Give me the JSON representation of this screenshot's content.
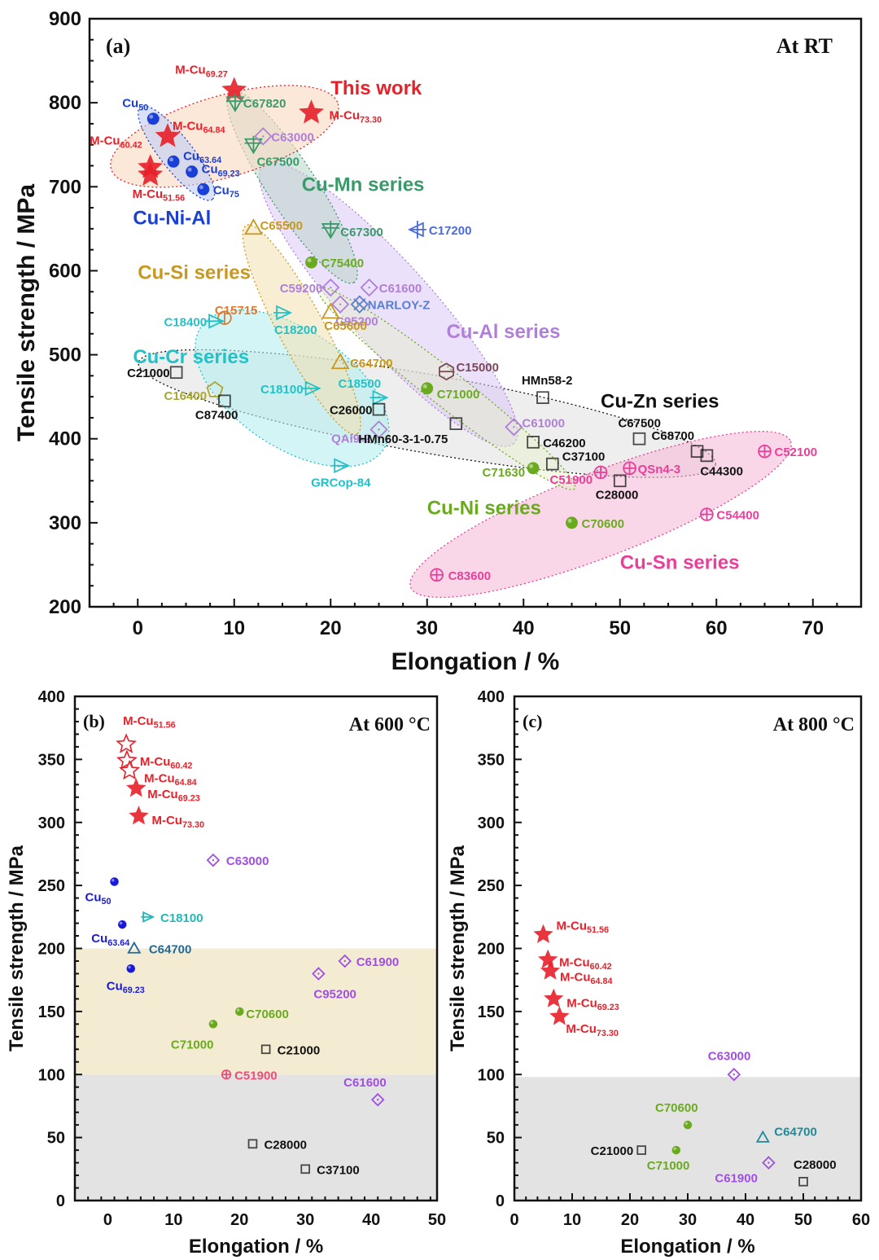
{
  "chart_data": [
    {
      "panel": "(a)",
      "type": "scatter",
      "title": "At RT",
      "xlabel": "Elongation / %",
      "ylabel": "Tensile strength / MPa",
      "xlim": [
        -5,
        75
      ],
      "ylim": [
        200,
        900
      ],
      "xticks": [
        0,
        10,
        20,
        30,
        40,
        50,
        60,
        70
      ],
      "yticks": [
        200,
        300,
        400,
        500,
        600,
        700,
        800,
        900
      ],
      "groups": [
        {
          "name": "This work",
          "color": "#e8202a"
        },
        {
          "name": "Cu-Ni-Al",
          "color": "#1a3fd6"
        },
        {
          "name": "Cu-Mn series",
          "color": "#3a9a6a"
        },
        {
          "name": "Cu-Si series",
          "color": "#c9981e"
        },
        {
          "name": "Cu-Al series",
          "color": "#b07fd8"
        },
        {
          "name": "Cu-Cr series",
          "color": "#22c2c8"
        },
        {
          "name": "Cu-Zn series",
          "color": "#111111"
        },
        {
          "name": "Cu-Ni series",
          "color": "#6aaa1e"
        },
        {
          "name": "Cu-Sn series",
          "color": "#e8409a"
        }
      ],
      "points": [
        {
          "label": "M-Cu",
          "sub": "69.27",
          "x": 10.0,
          "y": 815,
          "group": "This work",
          "marker": "star"
        },
        {
          "label": "M-Cu",
          "sub": "73.30",
          "x": 18.0,
          "y": 788,
          "group": "This work",
          "marker": "star"
        },
        {
          "label": "M-Cu",
          "sub": "64.84",
          "x": 3.1,
          "y": 760,
          "group": "This work",
          "marker": "star"
        },
        {
          "label": "M-Cu",
          "sub": "60.42",
          "x": 1.3,
          "y": 723,
          "group": "This work",
          "marker": "star"
        },
        {
          "label": "M-Cu",
          "sub": "51.56",
          "x": 1.3,
          "y": 714,
          "group": "This work",
          "marker": "star"
        },
        {
          "label": "Cu",
          "sub": "50",
          "x": 1.6,
          "y": 781,
          "group": "Cu-Ni-Al",
          "marker": "ball"
        },
        {
          "label": "Cu",
          "sub": "63.64",
          "x": 3.7,
          "y": 730,
          "group": "Cu-Ni-Al",
          "marker": "ball"
        },
        {
          "label": "Cu",
          "sub": "69.23",
          "x": 5.6,
          "y": 718,
          "group": "Cu-Ni-Al",
          "marker": "ball"
        },
        {
          "label": "Cu",
          "sub": "75",
          "x": 6.8,
          "y": 697,
          "group": "Cu-Ni-Al",
          "marker": "ball"
        },
        {
          "label": "C67820",
          "x": 10.1,
          "y": 800,
          "group": "Cu-Mn series",
          "marker": "tridown"
        },
        {
          "label": "C67500",
          "x": 12.0,
          "y": 750,
          "group": "Cu-Mn series",
          "marker": "tridown"
        },
        {
          "label": "C67300",
          "x": 20.0,
          "y": 649,
          "group": "Cu-Mn series",
          "marker": "tridown"
        },
        {
          "label": "C63000",
          "x": 13.0,
          "y": 760,
          "group": "Cu-Al series",
          "marker": "diamond"
        },
        {
          "label": "C59200",
          "x": 20.0,
          "y": 580,
          "group": "Cu-Al series",
          "marker": "diamond"
        },
        {
          "label": "C61600",
          "x": 24.0,
          "y": 580,
          "group": "Cu-Al series",
          "marker": "diamond"
        },
        {
          "label": "C95200",
          "x": 21.0,
          "y": 560,
          "group": "Cu-Al series",
          "marker": "diamond"
        },
        {
          "label": "QAl9-2",
          "x": 25.0,
          "y": 411,
          "group": "Cu-Al series",
          "marker": "diamond"
        },
        {
          "label": "C61000",
          "x": 39.0,
          "y": 414,
          "group": "Cu-Al series",
          "marker": "diamond"
        },
        {
          "label": "C17200",
          "x": 29.0,
          "y": 649,
          "group": "Other",
          "marker": "triLeftCross",
          "color": "#4a6ae0"
        },
        {
          "label": "NARLOY-Z",
          "x": 23.0,
          "y": 560,
          "group": "Other",
          "marker": "cross",
          "color": "#5a7fd0"
        },
        {
          "label": "C15715",
          "x": 9.0,
          "y": 544,
          "group": "Other",
          "marker": "circleBar",
          "color": "#e07a30"
        },
        {
          "label": "C15000",
          "x": 32.0,
          "y": 480,
          "group": "Other",
          "marker": "hexagon",
          "color": "#7a4a5a"
        },
        {
          "label": "C16400",
          "x": 8.0,
          "y": 458,
          "group": "Other",
          "marker": "pentagon",
          "color": "#a8a830"
        },
        {
          "label": "C65500",
          "x": 12.0,
          "y": 651,
          "group": "Cu-Si series",
          "marker": "triangle"
        },
        {
          "label": "C65600",
          "x": 20.0,
          "y": 551,
          "group": "Cu-Si series",
          "marker": "triangle"
        },
        {
          "label": "C64700",
          "x": 21.0,
          "y": 491,
          "group": "Cu-Si series",
          "marker": "triangle"
        },
        {
          "label": "C18400",
          "x": 8.0,
          "y": 540,
          "group": "Cu-Cr series",
          "marker": "triright"
        },
        {
          "label": "C18200",
          "x": 15.0,
          "y": 550,
          "group": "Cu-Cr series",
          "marker": "triright"
        },
        {
          "label": "C18100",
          "x": 18.0,
          "y": 460,
          "group": "Cu-Cr series",
          "marker": "triright"
        },
        {
          "label": "C18500",
          "x": 25.0,
          "y": 449,
          "group": "Cu-Cr series",
          "marker": "triright"
        },
        {
          "label": "GRCop-84",
          "x": 21.0,
          "y": 368,
          "group": "Cu-Cr series",
          "marker": "triright"
        },
        {
          "label": "C21000",
          "x": 4.0,
          "y": 479,
          "group": "Cu-Zn series",
          "marker": "square"
        },
        {
          "label": "C87400",
          "x": 9.0,
          "y": 445,
          "group": "Cu-Zn series",
          "marker": "square"
        },
        {
          "label": "C26000",
          "x": 25.0,
          "y": 435,
          "group": "Cu-Zn series",
          "marker": "square"
        },
        {
          "label": "HMn58-2",
          "x": 42.0,
          "y": 449,
          "group": "Cu-Zn series",
          "marker": "square"
        },
        {
          "label": "HMn60-3-1-0.75",
          "x": 33.0,
          "y": 418,
          "group": "Cu-Zn series",
          "marker": "square"
        },
        {
          "label": "C46200",
          "x": 41.0,
          "y": 396,
          "group": "Cu-Zn series",
          "marker": "square"
        },
        {
          "label": "C67500",
          "x": 52.0,
          "y": 400,
          "group": "Cu-Zn series",
          "marker": "square"
        },
        {
          "label": "C68700",
          "x": 58.0,
          "y": 385,
          "group": "Cu-Zn series",
          "marker": "square"
        },
        {
          "label": "C44300",
          "x": 59.0,
          "y": 380,
          "group": "Cu-Zn series",
          "marker": "square"
        },
        {
          "label": "C37100",
          "x": 43.0,
          "y": 370,
          "group": "Cu-Zn series",
          "marker": "square"
        },
        {
          "label": "C28000",
          "x": 50.0,
          "y": 350,
          "group": "Cu-Zn series",
          "marker": "square"
        },
        {
          "label": "C75400",
          "x": 18.0,
          "y": 610,
          "group": "Cu-Ni series",
          "marker": "ball"
        },
        {
          "label": "C71000",
          "x": 30.0,
          "y": 460,
          "group": "Cu-Ni series",
          "marker": "ball"
        },
        {
          "label": "C71630",
          "x": 41.0,
          "y": 365,
          "group": "Cu-Ni series",
          "marker": "ball"
        },
        {
          "label": "C70600",
          "x": 45.0,
          "y": 300,
          "group": "Cu-Ni series",
          "marker": "ball"
        },
        {
          "label": "C51900",
          "x": 48.0,
          "y": 360,
          "group": "Cu-Sn series",
          "marker": "circlePlus"
        },
        {
          "label": "QSn4-3",
          "x": 51.0,
          "y": 365,
          "group": "Cu-Sn series",
          "marker": "circlePlus"
        },
        {
          "label": "C52100",
          "x": 65.0,
          "y": 385,
          "group": "Cu-Sn series",
          "marker": "circlePlus"
        },
        {
          "label": "C54400",
          "x": 59.0,
          "y": 310,
          "group": "Cu-Sn series",
          "marker": "circlePlus"
        },
        {
          "label": "C83600",
          "x": 31.0,
          "y": 238,
          "group": "Cu-Sn series",
          "marker": "circlePlus"
        }
      ]
    },
    {
      "panel": "(b)",
      "type": "scatter",
      "title": "At 600 °C",
      "xlabel": "Elongation / %",
      "ylabel": "Tensile strength / MPa",
      "xlim": [
        -5,
        50
      ],
      "ylim": [
        0,
        400
      ],
      "xticks": [
        0,
        10,
        20,
        30,
        40,
        50
      ],
      "yticks": [
        0,
        50,
        100,
        150,
        200,
        250,
        300,
        350,
        400
      ],
      "bands": [
        {
          "from": 100,
          "to": 200,
          "color": "#f3ecd3"
        },
        {
          "from": 0,
          "to": 100,
          "color": "#e3e3e3"
        }
      ],
      "points": [
        {
          "label": "M-Cu",
          "sub": "51.56",
          "x": 2.8,
          "y": 362,
          "marker": "starOpen",
          "color": "#e8202a"
        },
        {
          "label": "M-Cu",
          "sub": "60.42",
          "x": 2.9,
          "y": 349,
          "marker": "starOpen",
          "color": "#e8202a"
        },
        {
          "label": "M-Cu",
          "sub": "64.84",
          "x": 3.3,
          "y": 341,
          "marker": "starOpen",
          "color": "#e8202a"
        },
        {
          "label": "M-Cu",
          "sub": "69.23",
          "x": 4.3,
          "y": 327,
          "marker": "star",
          "color": "#e8202a"
        },
        {
          "label": "M-Cu",
          "sub": "73.30",
          "x": 4.7,
          "y": 305,
          "marker": "star",
          "color": "#e8202a"
        },
        {
          "label": "C63000",
          "x": 16.0,
          "y": 270,
          "marker": "diamond",
          "color": "#a050e0"
        },
        {
          "label": "Cu",
          "sub": "50",
          "x": 1.0,
          "y": 253,
          "marker": "ball",
          "color": "#1a1ad6"
        },
        {
          "label": "C18100",
          "x": 6.0,
          "y": 225,
          "marker": "triright",
          "color": "#22b8b8"
        },
        {
          "label": "Cu",
          "sub": "63.64",
          "x": 2.2,
          "y": 219,
          "marker": "ball",
          "color": "#1a1ad6"
        },
        {
          "label": "C64700",
          "x": 4.0,
          "y": 200,
          "marker": "triangle",
          "color": "#1e6a9a"
        },
        {
          "label": "Cu",
          "sub": "69.23",
          "x": 3.5,
          "y": 184,
          "marker": "ball",
          "color": "#1a1ad6"
        },
        {
          "label": "C61900",
          "x": 36.0,
          "y": 190,
          "marker": "diamond",
          "color": "#a050e0"
        },
        {
          "label": "C95200",
          "x": 32.0,
          "y": 180,
          "marker": "diamond",
          "color": "#a050e0"
        },
        {
          "label": "C70600",
          "x": 20.0,
          "y": 150,
          "marker": "ball",
          "color": "#6aaa1e"
        },
        {
          "label": "C71000",
          "x": 16.0,
          "y": 140,
          "marker": "ball",
          "color": "#6aaa1e"
        },
        {
          "label": "C21000",
          "x": 24.0,
          "y": 120,
          "marker": "square",
          "color": "#111111"
        },
        {
          "label": "C51900",
          "x": 18.0,
          "y": 100,
          "marker": "circlePlus",
          "color": "#e8507a"
        },
        {
          "label": "C61600",
          "x": 41.0,
          "y": 80,
          "marker": "diamond",
          "color": "#a050e0"
        },
        {
          "label": "C28000",
          "x": 22.0,
          "y": 45,
          "marker": "square",
          "color": "#111111"
        },
        {
          "label": "C37100",
          "x": 30.0,
          "y": 25,
          "marker": "square",
          "color": "#111111"
        }
      ]
    },
    {
      "panel": "(c)",
      "type": "scatter",
      "title": "At 800 °C",
      "xlabel": "Elongation / %",
      "ylabel": "Tensile strength / MPa",
      "xlim": [
        0,
        60
      ],
      "ylim": [
        0,
        400
      ],
      "xticks": [
        0,
        10,
        20,
        30,
        40,
        50,
        60
      ],
      "yticks": [
        0,
        50,
        100,
        150,
        200,
        250,
        300,
        350,
        400
      ],
      "bands": [
        {
          "from": 0,
          "to": 98,
          "color": "#e3e3e3"
        }
      ],
      "points": [
        {
          "label": "M-Cu",
          "sub": "51.56",
          "x": 5.0,
          "y": 211,
          "marker": "star",
          "color": "#e8202a"
        },
        {
          "label": "M-Cu",
          "sub": "60.42",
          "x": 5.8,
          "y": 191,
          "marker": "star",
          "color": "#e8202a"
        },
        {
          "label": "M-Cu",
          "sub": "64.84",
          "x": 6.2,
          "y": 182,
          "marker": "star",
          "color": "#e8202a"
        },
        {
          "label": "M-Cu",
          "sub": "69.23",
          "x": 6.8,
          "y": 160,
          "marker": "star",
          "color": "#e8202a"
        },
        {
          "label": "M-Cu",
          "sub": "73.30",
          "x": 7.8,
          "y": 146,
          "marker": "star",
          "color": "#e8202a"
        },
        {
          "label": "C63000",
          "x": 38.0,
          "y": 100,
          "marker": "diamond",
          "color": "#a050e0"
        },
        {
          "label": "C70600",
          "x": 30.0,
          "y": 60,
          "marker": "ball",
          "color": "#6aaa1e"
        },
        {
          "label": "C64700",
          "x": 43.0,
          "y": 50,
          "marker": "triangle",
          "color": "#1e8a9a"
        },
        {
          "label": "C21000",
          "x": 22.0,
          "y": 40,
          "marker": "square",
          "color": "#111111"
        },
        {
          "label": "C71000",
          "x": 28.0,
          "y": 40,
          "marker": "ball",
          "color": "#6aaa1e"
        },
        {
          "label": "C61900",
          "x": 44.0,
          "y": 30,
          "marker": "diamond",
          "color": "#a050e0"
        },
        {
          "label": "C28000",
          "x": 50.0,
          "y": 15,
          "marker": "square",
          "color": "#111111"
        }
      ]
    }
  ]
}
